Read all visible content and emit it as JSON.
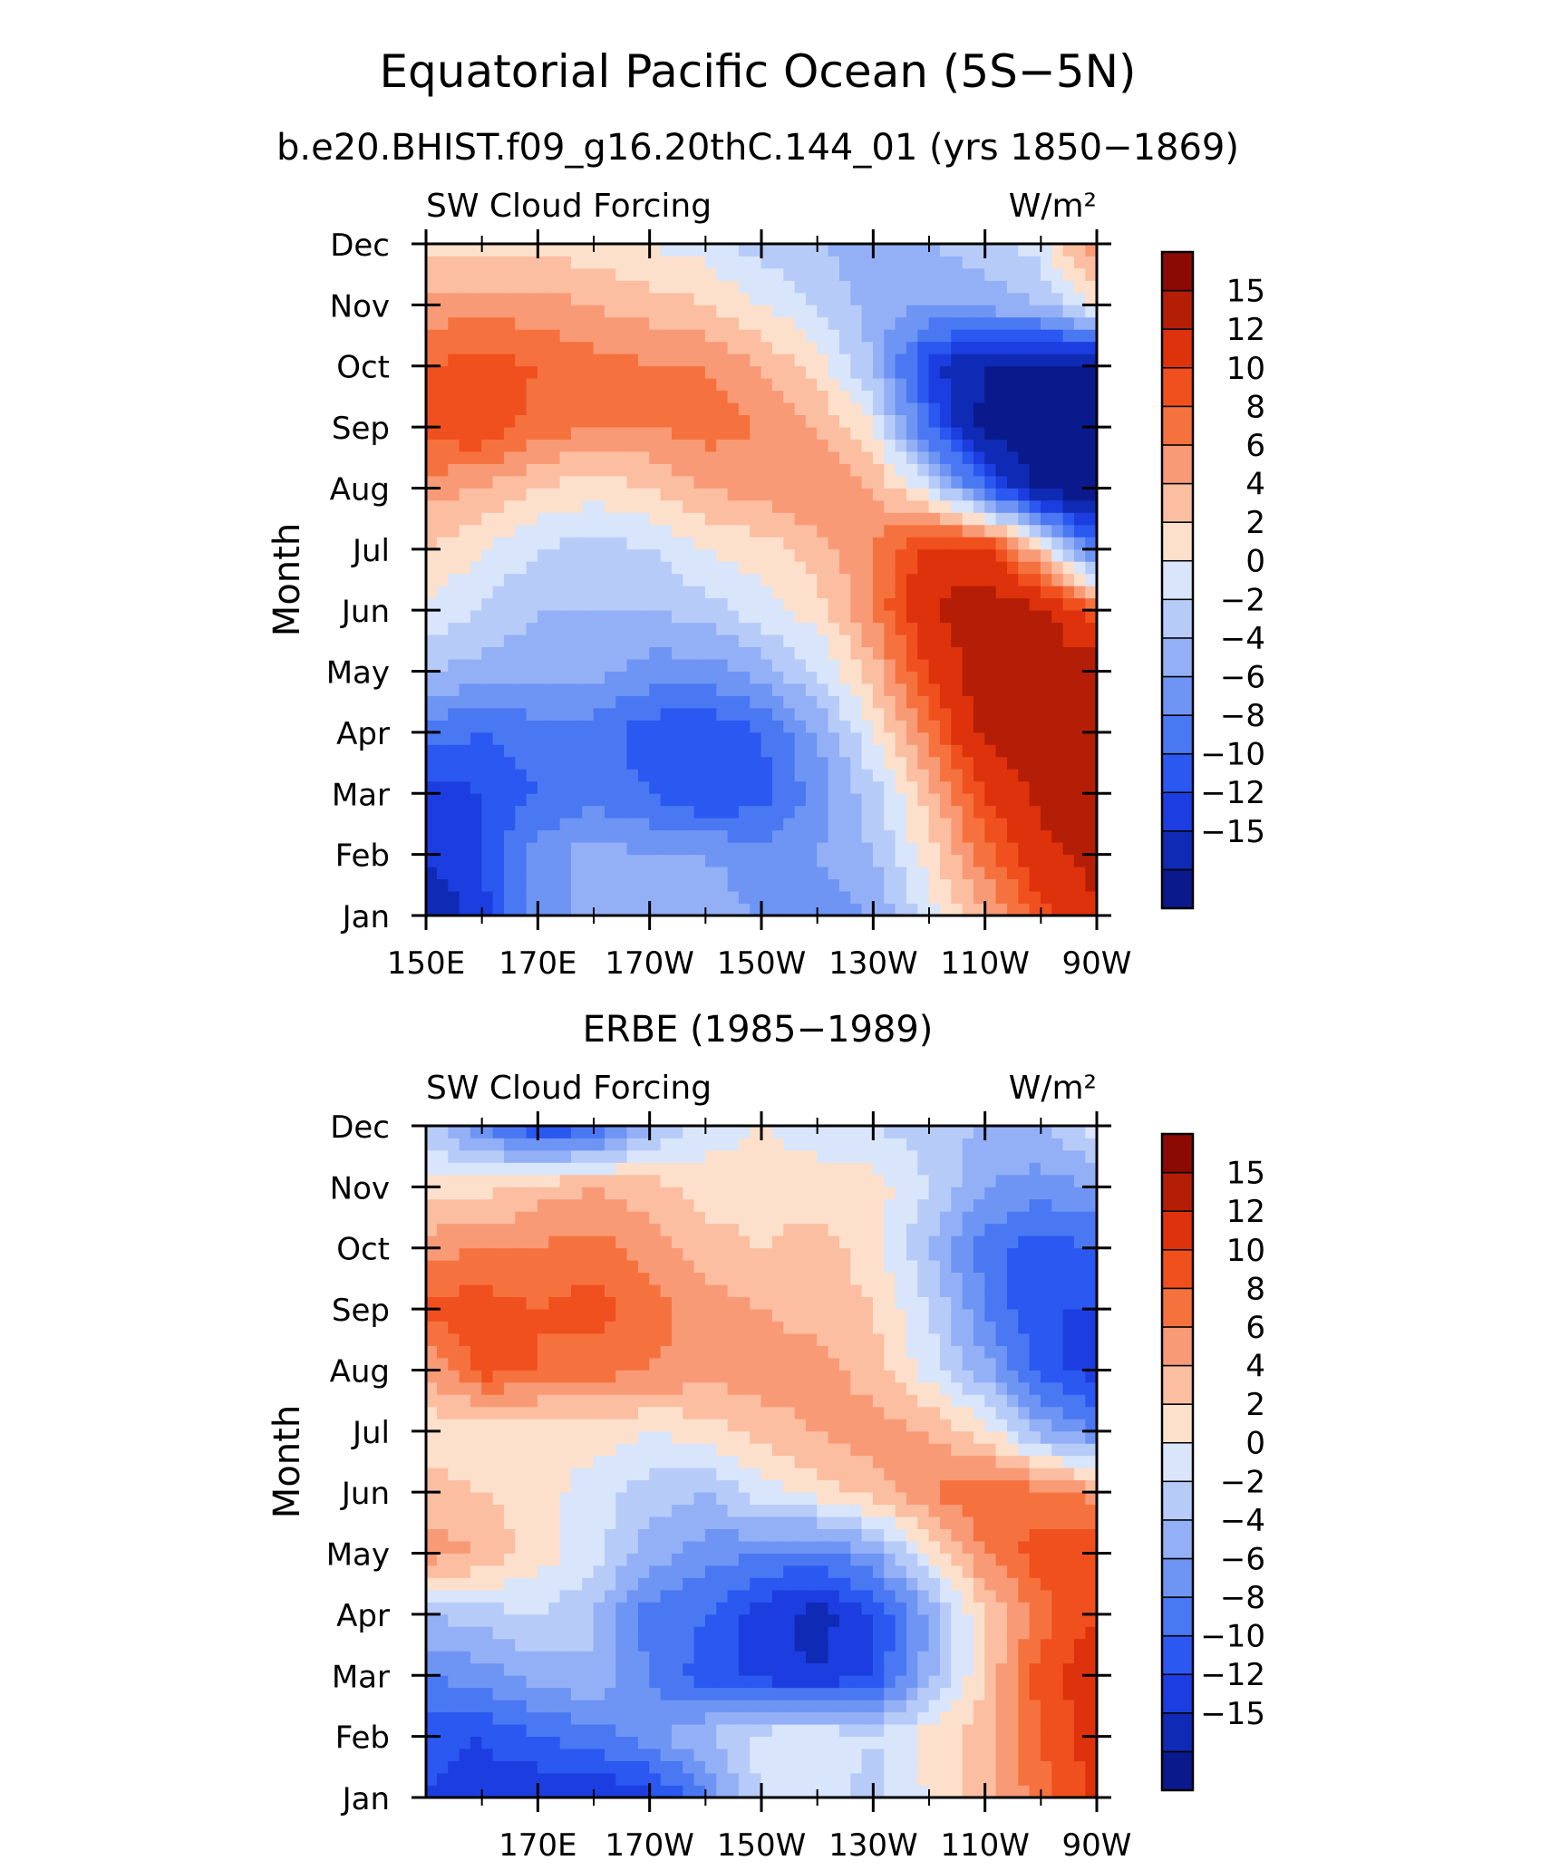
{
  "page": {
    "title": "Equatorial Pacific Ocean (5S−5N)",
    "subtitle": "b.e20.BHIST.f09_g16.20thC.144_01 (yrs 1850−1869)",
    "panel2_title": "ERBE (1985−1989)"
  },
  "chart_data": [
    {
      "type": "heatmap",
      "title": "b.e20.BHIST.f09_g16.20thC.144_01 (yrs 1850−1869)",
      "left_label": "SW Cloud Forcing",
      "units": "W/m²",
      "ylabel": "Month",
      "xlabel": "",
      "x_range": [
        150,
        270
      ],
      "x_ticks": [
        150,
        170,
        190,
        210,
        230,
        250,
        270
      ],
      "x_tick_labels": [
        "150E",
        "170E",
        "170W",
        "150W",
        "130W",
        "110W",
        "90W"
      ],
      "y_tick_labels": [
        "Jan",
        "Feb",
        "Mar",
        "Apr",
        "May",
        "Jun",
        "Jul",
        "Aug",
        "Sep",
        "Oct",
        "Nov",
        "Dec"
      ],
      "x": [
        150,
        160,
        170,
        180,
        190,
        200,
        210,
        220,
        230,
        240,
        250,
        260,
        270
      ],
      "y": [
        "Jan",
        "Feb",
        "Mar",
        "Apr",
        "May",
        "Jun",
        "Jul",
        "Aug",
        "Sep",
        "Oct",
        "Nov",
        "Dec"
      ],
      "z": [
        [
          -14,
          -11,
          -5,
          -3,
          -2,
          -3,
          -4,
          -5,
          -4,
          1,
          6,
          11,
          15
        ],
        [
          -12,
          -10,
          -5,
          -3,
          -4,
          -4,
          -5,
          -4,
          -2,
          3,
          9,
          14,
          16
        ],
        [
          -11,
          -10,
          -8,
          -7,
          -8,
          -10,
          -9,
          -5,
          -1,
          5,
          12,
          16,
          17
        ],
        [
          -7,
          -8,
          -7,
          -7,
          -9,
          -10,
          -8,
          -4,
          2,
          9,
          16,
          17,
          17
        ],
        [
          -2,
          -3,
          -3,
          -3,
          -5,
          -5,
          -3,
          0,
          5,
          12,
          17,
          17,
          17
        ],
        [
          2,
          0,
          -2,
          -2,
          -2,
          -1,
          1,
          3,
          8,
          15,
          17,
          16,
          10
        ],
        [
          4,
          2,
          0,
          -1,
          0,
          2,
          3,
          5,
          8,
          13,
          13,
          4,
          -8
        ],
        [
          7,
          6,
          4,
          3,
          4,
          6,
          7,
          8,
          6,
          1,
          -8,
          -16,
          -17
        ],
        [
          11,
          12,
          9,
          8,
          8,
          9,
          8,
          6,
          2,
          -8,
          -16,
          -17,
          -17
        ],
        [
          10,
          11,
          10,
          9,
          8,
          8,
          6,
          3,
          -2,
          -11,
          -15,
          -16,
          -16
        ],
        [
          7,
          7,
          7,
          6,
          5,
          4,
          2,
          0,
          -3,
          -4,
          -3,
          -2,
          3
        ],
        [
          3,
          3,
          3,
          3,
          2,
          1,
          -1,
          -2,
          -3,
          -2,
          -1,
          1,
          8
        ]
      ]
    },
    {
      "type": "heatmap",
      "title": "ERBE (1985−1989)",
      "left_label": "SW Cloud Forcing",
      "units": "W/m²",
      "ylabel": "Month",
      "xlabel": "",
      "x_range": [
        150,
        270
      ],
      "x_ticks": [
        170,
        190,
        210,
        230,
        250,
        270
      ],
      "x_tick_labels": [
        "170E",
        "170W",
        "150W",
        "130W",
        "110W",
        "90W"
      ],
      "y_tick_labels": [
        "Jan",
        "Feb",
        "Mar",
        "Apr",
        "May",
        "Jun",
        "Jul",
        "Aug",
        "Sep",
        "Oct",
        "Nov",
        "Dec"
      ],
      "x": [
        150,
        160,
        170,
        180,
        190,
        200,
        210,
        220,
        230,
        240,
        250,
        260,
        270
      ],
      "y": [
        "Jan",
        "Feb",
        "Mar",
        "Apr",
        "May",
        "Jun",
        "Jul",
        "Aug",
        "Sep",
        "Oct",
        "Nov",
        "Dec"
      ],
      "z": [
        [
          -10,
          -11,
          -12,
          -12,
          -11,
          -6,
          0,
          1,
          -1,
          2,
          5,
          9,
          13
        ],
        [
          -9,
          -10,
          -8,
          -7,
          -5,
          -2,
          1,
          2,
          0,
          3,
          5,
          10,
          13
        ],
        [
          -6,
          -5,
          -3,
          -2,
          -6,
          -9,
          -11,
          -12,
          -10,
          -3,
          4,
          11,
          14
        ],
        [
          -2,
          -1,
          0,
          -2,
          -7,
          -8,
          -11,
          -13,
          -10,
          -4,
          4,
          9,
          12
        ],
        [
          7,
          6,
          3,
          1,
          -3,
          -5,
          -6,
          -7,
          -4,
          2,
          8,
          11,
          12
        ],
        [
          5,
          4,
          3,
          1,
          -1,
          -2,
          1,
          3,
          5,
          8,
          10,
          9,
          7
        ],
        [
          3,
          2,
          2,
          3,
          2,
          3,
          5,
          6,
          7,
          6,
          3,
          -3,
          -6
        ],
        [
          6,
          11,
          10,
          9,
          8,
          7,
          7,
          7,
          5,
          1,
          -3,
          -9,
          -11
        ],
        [
          11,
          11,
          10,
          11,
          9,
          7,
          6,
          5,
          4,
          0,
          -6,
          -10,
          -10
        ],
        [
          7,
          8,
          8,
          9,
          7,
          5,
          4,
          5,
          3,
          -2,
          -7,
          -9,
          -8
        ],
        [
          3,
          3,
          5,
          6,
          5,
          3,
          3,
          3,
          3,
          0,
          -4,
          -5,
          -4
        ],
        [
          -1,
          -6,
          -10,
          -9,
          -3,
          1,
          2,
          1,
          0,
          -1,
          -2,
          -2,
          1
        ]
      ]
    }
  ],
  "colorbar": {
    "tick_labels": [
      "15",
      "12",
      "10",
      "8",
      "6",
      "4",
      "2",
      "0",
      "−2",
      "−4",
      "−6",
      "−8",
      "−10",
      "−12",
      "−15"
    ],
    "levels": [
      -15,
      -12,
      -10,
      -8,
      -6,
      -4,
      -2,
      0,
      2,
      4,
      6,
      8,
      10,
      12,
      15
    ],
    "colors_bottom_to_top": [
      "#0a1a8c",
      "#0f2bb5",
      "#1c3ee0",
      "#2a58f0",
      "#4a78f2",
      "#6e95f3",
      "#93b0f6",
      "#b7cbf8",
      "#d8e5fa",
      "#fde0cb",
      "#fbbea1",
      "#f99a76",
      "#f5723f",
      "#f0501e",
      "#dd320c",
      "#b41e06",
      "#8c0a04"
    ]
  }
}
